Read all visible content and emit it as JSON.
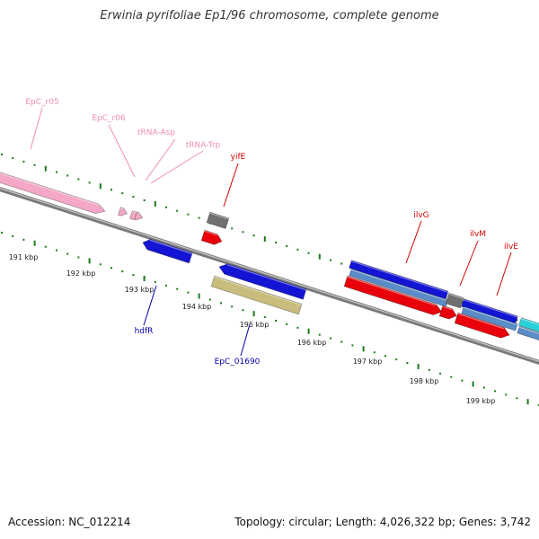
{
  "title": "Erwinia pyrifoliae Ep1/96 chromosome, complete genome",
  "footer": {
    "accession": "Accession: NC_012214",
    "topology": "Topology: circular; Length: 4,026,322 bp; Genes: 3,742"
  },
  "colors": {
    "rRNA": "#f4a7c7",
    "tRNA": "#f4a7c7",
    "gene_red": "#e8000b",
    "gene_blue": "#1414d4",
    "gene_khaki": "#c8bd7c",
    "gene_gray": "#707070",
    "gene_lightblue": "#5a8cc8",
    "gene_cyan": "#2ad1d8",
    "tick_green": "#1a7a1a",
    "backbone": "#8c8c8c"
  },
  "scale_ticks": [
    "191 kbp",
    "192 kbp",
    "193 kbp",
    "194 kbp",
    "195 kbp",
    "196 kbp",
    "197 kbp",
    "198 kbp",
    "199 kbp"
  ],
  "feature_labels": [
    {
      "text": "EpC_r05",
      "color": "#f08cb4"
    },
    {
      "text": "EpC_r06",
      "color": "#f08cb4"
    },
    {
      "text": "tRNA-Asp",
      "color": "#f08cb4"
    },
    {
      "text": "tRNA-Trp",
      "color": "#f08cb4"
    },
    {
      "text": "yifE",
      "color": "#d00000"
    },
    {
      "text": "ilvG",
      "color": "#d00000"
    },
    {
      "text": "ilvM",
      "color": "#d00000"
    },
    {
      "text": "ilvE",
      "color": "#d00000"
    },
    {
      "text": "hdfR",
      "color": "#0000aa"
    },
    {
      "text": "EpC_01690",
      "color": "#0000aa"
    }
  ]
}
